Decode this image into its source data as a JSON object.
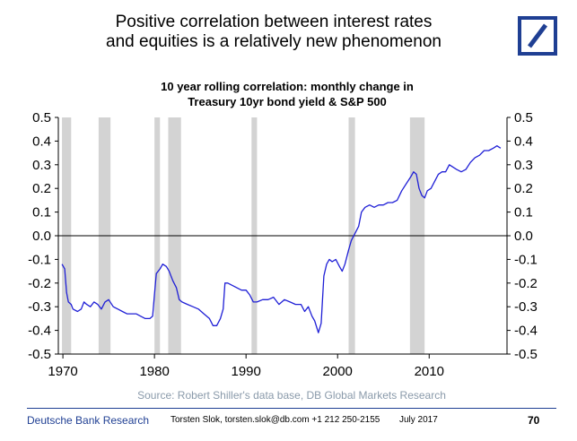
{
  "headline": {
    "line1": "Positive correlation between interest rates",
    "line2": "and equities is a relatively new phenomenon"
  },
  "logo": {
    "name": "deutsche-bank-logo",
    "color": "#1f3f93"
  },
  "footer": {
    "brand": "Deutsche Bank Research",
    "contact": "Torsten Slok, torsten.slok@db.com +1 212 250-2155",
    "date": "July 2017",
    "page": "70"
  },
  "chart_data": {
    "type": "line",
    "title_line1": "10 year rolling correlation: monthly change in",
    "title_line2": "Treasury 10yr bond yield & S&P 500",
    "source": "Source: Robert Shiller's data base, DB Global Markets Research",
    "xlim": [
      1969.5,
      2018.5
    ],
    "ylim": [
      -0.5,
      0.5
    ],
    "x_ticks": [
      1970,
      1980,
      1990,
      2000,
      2010
    ],
    "y_ticks": [
      "0.5",
      "0.4",
      "0.3",
      "0.2",
      "0.1",
      "0.0",
      "-0.1",
      "-0.2",
      "-0.3",
      "-0.4",
      "-0.5"
    ],
    "y_tick_values": [
      0.5,
      0.4,
      0.3,
      0.2,
      0.1,
      0.0,
      -0.1,
      -0.2,
      -0.3,
      -0.4,
      -0.5
    ],
    "grid": false,
    "zero_line": true,
    "line_color": "#1f1fd6",
    "recession_color": "#d3d3d3",
    "recessions": [
      [
        1969.9,
        1970.9
      ],
      [
        1973.9,
        1975.2
      ],
      [
        1980.0,
        1980.6
      ],
      [
        1981.5,
        1982.9
      ],
      [
        1990.6,
        1991.2
      ],
      [
        2001.2,
        2001.9
      ],
      [
        2007.9,
        2009.5
      ]
    ],
    "series": [
      {
        "points": [
          [
            1969.9,
            -0.12
          ],
          [
            1970.2,
            -0.14
          ],
          [
            1970.4,
            -0.24
          ],
          [
            1970.6,
            -0.28
          ],
          [
            1970.9,
            -0.29
          ],
          [
            1971.1,
            -0.31
          ],
          [
            1971.6,
            -0.32
          ],
          [
            1972.0,
            -0.31
          ],
          [
            1972.3,
            -0.28
          ],
          [
            1972.6,
            -0.29
          ],
          [
            1973.0,
            -0.3
          ],
          [
            1973.4,
            -0.28
          ],
          [
            1973.8,
            -0.29
          ],
          [
            1974.2,
            -0.31
          ],
          [
            1974.6,
            -0.28
          ],
          [
            1975.0,
            -0.27
          ],
          [
            1975.5,
            -0.3
          ],
          [
            1976.0,
            -0.31
          ],
          [
            1976.5,
            -0.32
          ],
          [
            1977.0,
            -0.33
          ],
          [
            1977.5,
            -0.33
          ],
          [
            1978.0,
            -0.33
          ],
          [
            1978.5,
            -0.34
          ],
          [
            1979.0,
            -0.35
          ],
          [
            1979.5,
            -0.35
          ],
          [
            1979.8,
            -0.34
          ],
          [
            1980.0,
            -0.25
          ],
          [
            1980.2,
            -0.16
          ],
          [
            1980.6,
            -0.14
          ],
          [
            1980.9,
            -0.12
          ],
          [
            1981.3,
            -0.13
          ],
          [
            1981.6,
            -0.15
          ],
          [
            1982.0,
            -0.19
          ],
          [
            1982.4,
            -0.22
          ],
          [
            1982.7,
            -0.27
          ],
          [
            1983.0,
            -0.28
          ],
          [
            1983.6,
            -0.29
          ],
          [
            1984.2,
            -0.3
          ],
          [
            1984.8,
            -0.31
          ],
          [
            1985.4,
            -0.33
          ],
          [
            1986.0,
            -0.35
          ],
          [
            1986.4,
            -0.38
          ],
          [
            1986.8,
            -0.38
          ],
          [
            1987.2,
            -0.35
          ],
          [
            1987.5,
            -0.31
          ],
          [
            1987.7,
            -0.2
          ],
          [
            1988.0,
            -0.2
          ],
          [
            1988.5,
            -0.21
          ],
          [
            1989.0,
            -0.22
          ],
          [
            1989.5,
            -0.23
          ],
          [
            1990.0,
            -0.23
          ],
          [
            1990.4,
            -0.25
          ],
          [
            1990.8,
            -0.28
          ],
          [
            1991.2,
            -0.28
          ],
          [
            1991.8,
            -0.27
          ],
          [
            1992.4,
            -0.27
          ],
          [
            1993.0,
            -0.26
          ],
          [
            1993.6,
            -0.29
          ],
          [
            1994.2,
            -0.27
          ],
          [
            1994.8,
            -0.28
          ],
          [
            1995.4,
            -0.29
          ],
          [
            1996.0,
            -0.29
          ],
          [
            1996.4,
            -0.32
          ],
          [
            1996.8,
            -0.3
          ],
          [
            1997.2,
            -0.34
          ],
          [
            1997.5,
            -0.36
          ],
          [
            1997.9,
            -0.41
          ],
          [
            1998.2,
            -0.37
          ],
          [
            1998.5,
            -0.17
          ],
          [
            1998.8,
            -0.12
          ],
          [
            1999.1,
            -0.1
          ],
          [
            1999.4,
            -0.11
          ],
          [
            1999.8,
            -0.1
          ],
          [
            2000.2,
            -0.13
          ],
          [
            2000.5,
            -0.15
          ],
          [
            2000.8,
            -0.12
          ],
          [
            2001.2,
            -0.06
          ],
          [
            2001.5,
            -0.02
          ],
          [
            2001.9,
            0.01
          ],
          [
            2002.3,
            0.04
          ],
          [
            2002.6,
            0.1
          ],
          [
            2003.0,
            0.12
          ],
          [
            2003.5,
            0.13
          ],
          [
            2004.0,
            0.12
          ],
          [
            2004.5,
            0.13
          ],
          [
            2005.0,
            0.13
          ],
          [
            2005.5,
            0.14
          ],
          [
            2006.0,
            0.14
          ],
          [
            2006.5,
            0.15
          ],
          [
            2007.0,
            0.19
          ],
          [
            2007.5,
            0.22
          ],
          [
            2008.0,
            0.25
          ],
          [
            2008.3,
            0.27
          ],
          [
            2008.6,
            0.26
          ],
          [
            2008.9,
            0.2
          ],
          [
            2009.2,
            0.17
          ],
          [
            2009.5,
            0.16
          ],
          [
            2009.8,
            0.19
          ],
          [
            2010.2,
            0.2
          ],
          [
            2010.6,
            0.23
          ],
          [
            2011.0,
            0.26
          ],
          [
            2011.4,
            0.27
          ],
          [
            2011.8,
            0.27
          ],
          [
            2012.2,
            0.3
          ],
          [
            2012.6,
            0.29
          ],
          [
            2013.0,
            0.28
          ],
          [
            2013.5,
            0.27
          ],
          [
            2014.0,
            0.28
          ],
          [
            2014.5,
            0.31
          ],
          [
            2015.0,
            0.33
          ],
          [
            2015.5,
            0.34
          ],
          [
            2016.0,
            0.36
          ],
          [
            2016.5,
            0.36
          ],
          [
            2017.0,
            0.37
          ],
          [
            2017.4,
            0.38
          ],
          [
            2017.8,
            0.37
          ]
        ]
      }
    ]
  }
}
